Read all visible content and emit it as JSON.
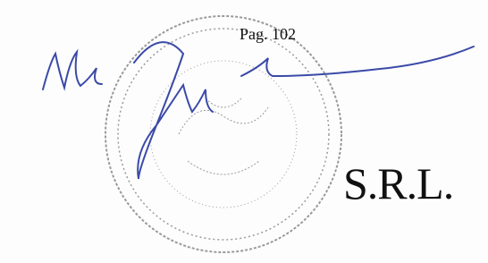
{
  "header": {
    "page": "Pag. 102"
  },
  "body": {
    "company_suffix": "S.R.L."
  }
}
